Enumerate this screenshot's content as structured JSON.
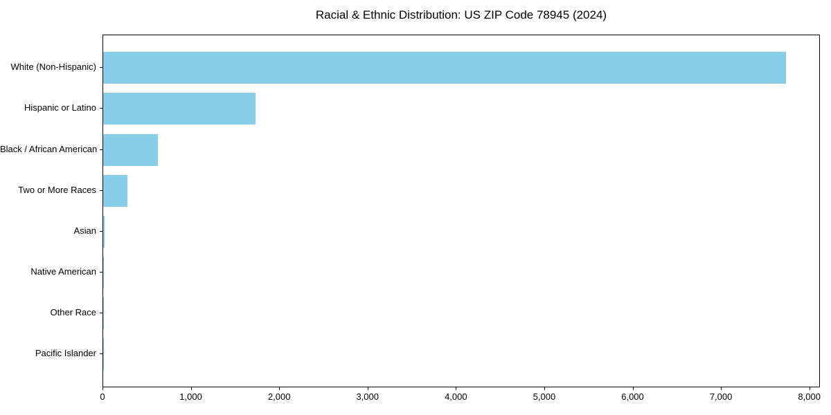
{
  "chart_data": {
    "type": "bar",
    "orientation": "horizontal",
    "title": "Racial & Ethnic Distribution: US ZIP Code 78945 (2024)",
    "categories": [
      "White (Non-Hispanic)",
      "Hispanic or Latino",
      "Black / African American",
      "Two or More Races",
      "Asian",
      "Native American",
      "Other Race",
      "Pacific Islander"
    ],
    "values": [
      7740,
      1725,
      622,
      278,
      15,
      8,
      4,
      2
    ],
    "bar_color": "#87CEEB",
    "xlabel": "",
    "ylabel": "",
    "xlim": [
      0,
      8120
    ],
    "x_ticks": [
      0,
      1000,
      2000,
      3000,
      4000,
      5000,
      6000,
      7000,
      8000
    ],
    "x_tick_labels": [
      "0",
      "1,000",
      "2,000",
      "3,000",
      "4,000",
      "5,000",
      "6,000",
      "7,000",
      "8,000"
    ],
    "grid": false,
    "legend_position": "none"
  }
}
